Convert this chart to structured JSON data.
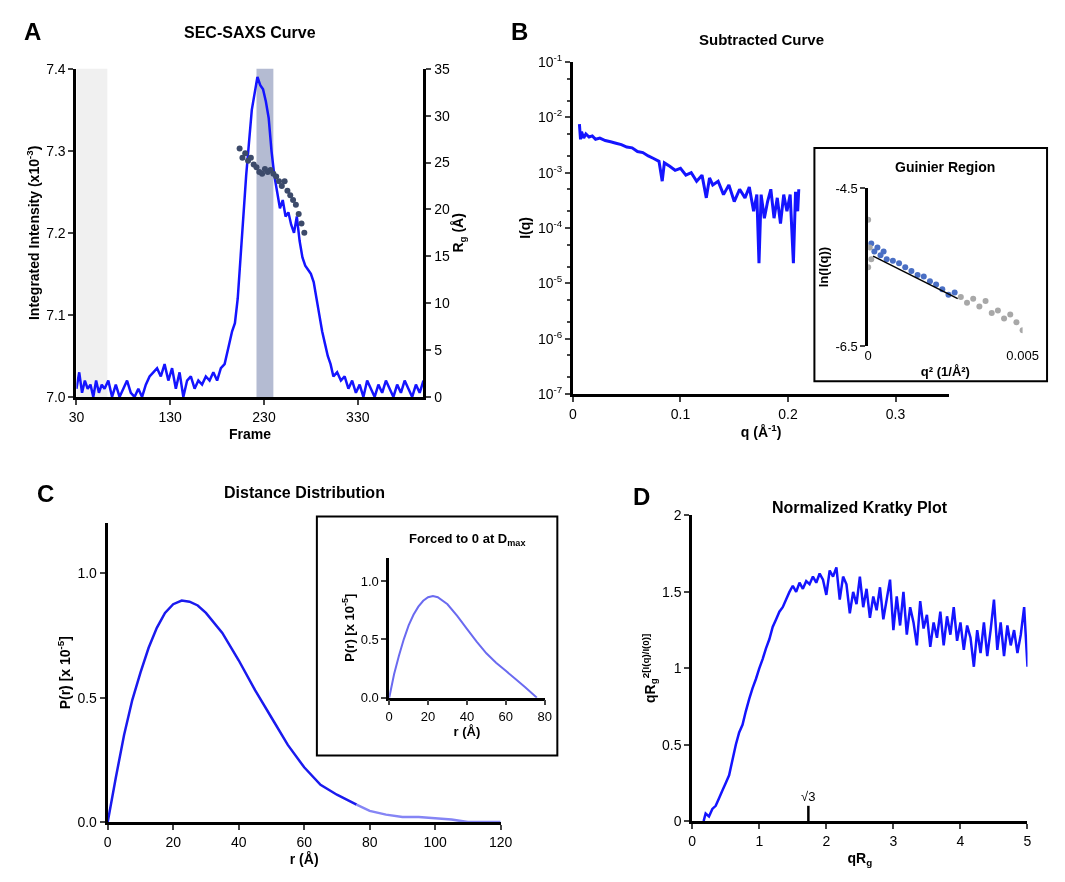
{
  "chart_data": [
    {
      "type": "line",
      "title": "SEC-SAXS Curve",
      "xlabel": "Frame",
      "ylabel": "Integrated Intensity (x10$^{-3}$)",
      "y2label": "R$_{g}$ (Å)",
      "annotations": [
        "A"
      ],
      "xlim": [
        30,
        400
      ],
      "xticks": [
        30,
        130,
        230,
        330
      ],
      "ylim": [
        7.0,
        7.4
      ],
      "yticks": [
        {
          "value": 7.0,
          "label": "7.0"
        },
        {
          "value": 7.1,
          "label": "7.1"
        },
        {
          "value": 7.2,
          "label": "7.2"
        },
        {
          "value": 7.3,
          "label": "7.3"
        },
        {
          "value": 7.4,
          "label": "7.4"
        }
      ],
      "y2lim": [
        0,
        35
      ],
      "y2ticks": [
        0,
        5,
        10,
        15,
        20,
        25,
        30,
        35
      ],
      "grid": false,
      "bands": [
        {
          "axis": "x",
          "from": 30,
          "to": 63,
          "color": "#f0f0f0"
        },
        {
          "axis": "x",
          "from": 222,
          "to": 240,
          "color": "#b4bbd2"
        }
      ],
      "series": [
        {
          "color": "#1414ff",
          "x": [
            30,
            33,
            36,
            39,
            42,
            45,
            48,
            51,
            54,
            57,
            60,
            64,
            68,
            72,
            76,
            80,
            84,
            88,
            92,
            96,
            100,
            104,
            108,
            112,
            116,
            120,
            124,
            128,
            132,
            136,
            140,
            144,
            148,
            152,
            156,
            160,
            164,
            168,
            172,
            176,
            180,
            184,
            188,
            192,
            196,
            199,
            202,
            205,
            208,
            211,
            214,
            217,
            220,
            223,
            226,
            229,
            232,
            235,
            238,
            241,
            244,
            247,
            250,
            253,
            256,
            259,
            262,
            265,
            268,
            271,
            274,
            277,
            280,
            283,
            286,
            289,
            292,
            295,
            298,
            301,
            304,
            308,
            312,
            316,
            320,
            324,
            328,
            332,
            336,
            340,
            344,
            348,
            352,
            356,
            360,
            364,
            368,
            372,
            376,
            380,
            384,
            388,
            392,
            396,
            400
          ],
          "values": [
            7.01,
            7.03,
            7.005,
            7.02,
            7.01,
            7.015,
            7.0,
            7.02,
            7.005,
            7.015,
            7.01,
            7.02,
            7.0,
            7.015,
            7.0,
            7.01,
            7.02,
            7.005,
            7.0,
            7.01,
            7.0,
            7.015,
            7.025,
            7.03,
            7.035,
            7.025,
            7.04,
            7.02,
            7.035,
            7.01,
            7.03,
            7.0,
            7.02,
            7.025,
            7.01,
            7.02,
            7.015,
            7.025,
            7.02,
            7.03,
            7.02,
            7.035,
            7.04,
            7.06,
            7.08,
            7.09,
            7.12,
            7.17,
            7.22,
            7.27,
            7.31,
            7.35,
            7.37,
            7.39,
            7.38,
            7.375,
            7.36,
            7.34,
            7.3,
            7.27,
            7.25,
            7.23,
            7.24,
            7.22,
            7.225,
            7.21,
            7.2,
            7.22,
            7.19,
            7.17,
            7.16,
            7.155,
            7.15,
            7.14,
            7.12,
            7.1,
            7.08,
            7.065,
            7.05,
            7.04,
            7.025,
            7.03,
            7.02,
            7.025,
            7.01,
            7.02,
            7.005,
            7.015,
            7.0,
            7.02,
            7.01,
            7.0,
            7.015,
            7.005,
            7.02,
            7.01,
            7.0,
            7.015,
            7.005,
            7.02,
            7.01,
            7.0,
            7.015,
            7.005,
            7.02
          ]
        },
        {
          "type": "scatter",
          "axis": "y2",
          "marker": "circle",
          "color": "#3c4a6a",
          "x": [
            204,
            207,
            210,
            213,
            216,
            219,
            222,
            225,
            228,
            231,
            234,
            237,
            240,
            243,
            246,
            249,
            252,
            255,
            258,
            261,
            264,
            267,
            270,
            273
          ],
          "values": [
            26.5,
            25.5,
            26,
            25.2,
            25.5,
            24.8,
            24.5,
            24,
            23.8,
            24.3,
            24,
            24.2,
            23.8,
            23.5,
            23,
            22.5,
            23,
            22,
            21.5,
            21,
            20.5,
            19.5,
            18.5,
            17.5
          ]
        }
      ]
    },
    {
      "type": "line",
      "title": "Subtracted Curve",
      "xlabel": "q (Å$^{-1}$)",
      "ylabel": "I(q)",
      "annotations": [
        "B"
      ],
      "log": true,
      "xlim": [
        0,
        0.35
      ],
      "xticks": [
        0,
        0.1,
        0.2,
        0.3
      ],
      "ylim": [
        1e-07,
        0.1
      ],
      "yticks": [
        {
          "value": 1e-07,
          "label": "10$^{-7}$"
        },
        {
          "value": 1e-06,
          "label": "10$^{-6}$"
        },
        {
          "value": 1e-05,
          "label": "10$^{-5}$"
        },
        {
          "value": 0.0001,
          "label": "10$^{-4}$"
        },
        {
          "value": 0.001,
          "label": "10$^{-3}$"
        },
        {
          "value": 0.01,
          "label": "10$^{-2}$"
        },
        {
          "value": 0.1,
          "label": "10$^{-1}$"
        }
      ],
      "grid": false,
      "series": [
        {
          "color": "#1414ff",
          "x": [
            0.006,
            0.007,
            0.008,
            0.01,
            0.012,
            0.015,
            0.018,
            0.021,
            0.025,
            0.03,
            0.035,
            0.04,
            0.045,
            0.05,
            0.055,
            0.06,
            0.065,
            0.07,
            0.075,
            0.08,
            0.083,
            0.085,
            0.09,
            0.095,
            0.1,
            0.105,
            0.11,
            0.115,
            0.12,
            0.124,
            0.127,
            0.13,
            0.135,
            0.14,
            0.145,
            0.15,
            0.155,
            0.16,
            0.164,
            0.168,
            0.171,
            0.173,
            0.175,
            0.178,
            0.181,
            0.184,
            0.187,
            0.19,
            0.193,
            0.196,
            0.199,
            0.202,
            0.205,
            0.207,
            0.209,
            0.21
          ],
          "values": [
            0.0075,
            0.004,
            0.0055,
            0.0042,
            0.005,
            0.0044,
            0.0046,
            0.004,
            0.0042,
            0.0038,
            0.0036,
            0.0034,
            0.0032,
            0.0029,
            0.0028,
            0.0024,
            0.0023,
            0.002,
            0.0018,
            0.0016,
            0.0007,
            0.0015,
            0.0013,
            0.0011,
            0.0012,
            0.0009,
            0.001,
            0.0007,
            0.0009,
            0.00035,
            0.0008,
            0.0006,
            0.0007,
            0.0004,
            0.0006,
            0.0003,
            0.0005,
            0.00035,
            0.00055,
            0.0002,
            0.0004,
            2.3e-05,
            0.0004,
            0.00015,
            0.0003,
            0.0005,
            0.00015,
            0.00035,
            0.00012,
            0.0004,
            0.0002,
            0.0004,
            2.3e-05,
            0.00045,
            0.0002,
            0.0005
          ]
        }
      ]
    },
    {
      "type": "scatter",
      "title": "Guinier Region",
      "xlabel": "q² (1/Å²)",
      "ylabel": "ln(I(q))",
      "xlim": [
        0,
        0.005
      ],
      "xticks": [
        0,
        0.005
      ],
      "ylim": [
        -6.5,
        -4.5
      ],
      "yticks": [
        -6.5,
        -4.5
      ],
      "grid": false,
      "series": [
        {
          "marker": "circle",
          "color": "#4a6fc4",
          "x": [
            0.0001,
            0.0002,
            0.0003,
            0.0004,
            0.0005,
            0.0006,
            0.0008,
            0.001,
            0.0012,
            0.0014,
            0.0016,
            0.0018,
            0.002,
            0.0022,
            0.0024,
            0.0026,
            0.0028
          ],
          "values": [
            -5.2,
            -5.3,
            -5.25,
            -5.35,
            -5.3,
            -5.4,
            -5.42,
            -5.45,
            -5.5,
            -5.55,
            -5.6,
            -5.62,
            -5.68,
            -5.72,
            -5.78,
            -5.85,
            -5.82
          ]
        },
        {
          "marker": "circle",
          "color": "#a8a8a8",
          "x": [
            0,
            0,
            5e-05,
            0.0001,
            0.003,
            0.0032,
            0.0034,
            0.0036,
            0.0038,
            0.004,
            0.0042,
            0.0044,
            0.0046,
            0.0048,
            0.005
          ],
          "values": [
            -4.9,
            -5.5,
            -5.25,
            -5.4,
            -5.88,
            -5.95,
            -5.9,
            -6.0,
            -5.93,
            -6.08,
            -6.05,
            -6.15,
            -6.1,
            -6.2,
            -6.3
          ]
        },
        {
          "type": "line",
          "color": "#000000",
          "x": [
            0.00016,
            0.0029
          ],
          "values": [
            -5.36,
            -5.9
          ]
        }
      ]
    },
    {
      "type": "line",
      "title": "Distance Distribution",
      "xlabel": "r (Å)",
      "ylabel": "P(r) [x 10$^{-5}$]",
      "annotations": [
        "C"
      ],
      "xlim": [
        0,
        120
      ],
      "xticks": [
        0,
        20,
        40,
        60,
        80,
        100,
        120
      ],
      "ylim": [
        0,
        1.2
      ],
      "yticks": [
        {
          "value": 0,
          "label": "0.0"
        },
        {
          "value": 0.5,
          "label": "0.5"
        },
        {
          "value": 1.0,
          "label": "1.0"
        }
      ],
      "grid": false,
      "series": [
        {
          "color": "#1a1aee",
          "x": [
            0,
            2.5,
            5,
            7.5,
            10,
            12.5,
            15,
            17.5,
            20,
            22.6,
            25,
            27.5,
            30,
            35,
            40,
            45,
            50,
            55,
            60,
            65,
            70,
            76
          ],
          "values": [
            0,
            0.18,
            0.35,
            0.49,
            0.6,
            0.7,
            0.78,
            0.84,
            0.875,
            0.89,
            0.885,
            0.87,
            0.84,
            0.76,
            0.65,
            0.53,
            0.42,
            0.31,
            0.22,
            0.15,
            0.11,
            0.07
          ]
        },
        {
          "color": "#8585f5",
          "x": [
            76,
            80,
            85,
            90,
            95,
            100,
            105,
            110,
            115,
            120
          ],
          "values": [
            0.07,
            0.045,
            0.03,
            0.02,
            0.02,
            0.015,
            0.01,
            0,
            0,
            0
          ]
        }
      ]
    },
    {
      "type": "line",
      "title": "Forced to 0 at D$_{max}$",
      "xlabel": "r (Å)",
      "ylabel": "P(r) [x 10$^{-5}$]",
      "xlim": [
        0,
        80
      ],
      "xticks": [
        0,
        20,
        40,
        60,
        80
      ],
      "ylim": [
        0,
        1.2
      ],
      "yticks": [
        {
          "value": 0,
          "label": "0.0"
        },
        {
          "value": 0.5,
          "label": "0.5"
        },
        {
          "value": 1.0,
          "label": "1.0"
        }
      ],
      "grid": false,
      "series": [
        {
          "color": "#6a6af0",
          "x": [
            0,
            2.5,
            5,
            7.5,
            10,
            12.5,
            15,
            17.5,
            20,
            22.5,
            25,
            30,
            35,
            40,
            45,
            50,
            55,
            60,
            65,
            70,
            76
          ],
          "values": [
            0,
            0.2,
            0.36,
            0.5,
            0.62,
            0.71,
            0.78,
            0.83,
            0.86,
            0.87,
            0.86,
            0.8,
            0.7,
            0.59,
            0.48,
            0.38,
            0.3,
            0.23,
            0.16,
            0.09,
            0
          ]
        }
      ]
    },
    {
      "type": "line",
      "title": "Normalized Kratky Plot",
      "xlabel": "qR$_{g}$",
      "ylabel": "qR$_{g}$$^{2[I(q)/I(0)]}$",
      "annotations": [
        "D"
      ],
      "xlim": [
        0,
        5
      ],
      "xticks": [
        0,
        1,
        2,
        3,
        4,
        5
      ],
      "ylim": [
        0,
        2
      ],
      "yticks": [
        0,
        0.5,
        1,
        1.5,
        2
      ],
      "grid": false,
      "ref_lines": [
        {
          "axis": "x",
          "value": 1.732,
          "label": "√3",
          "color": "#000000"
        }
      ],
      "series": [
        {
          "color": "#1414ff",
          "x": [
            0.17,
            0.2,
            0.25,
            0.3,
            0.35,
            0.4,
            0.45,
            0.5,
            0.55,
            0.6,
            0.65,
            0.7,
            0.75,
            0.8,
            0.85,
            0.9,
            0.95,
            1.0,
            1.05,
            1.1,
            1.15,
            1.2,
            1.25,
            1.3,
            1.35,
            1.4,
            1.45,
            1.5,
            1.55,
            1.6,
            1.65,
            1.7,
            1.75,
            1.8,
            1.85,
            1.9,
            1.95,
            2.0,
            2.05,
            2.1,
            2.15,
            2.2,
            2.25,
            2.3,
            2.35,
            2.4,
            2.45,
            2.5,
            2.55,
            2.6,
            2.65,
            2.7,
            2.75,
            2.8,
            2.85,
            2.9,
            2.95,
            3.0,
            3.05,
            3.1,
            3.15,
            3.2,
            3.25,
            3.3,
            3.35,
            3.4,
            3.45,
            3.5,
            3.55,
            3.6,
            3.65,
            3.7,
            3.75,
            3.8,
            3.85,
            3.9,
            3.95,
            4.0,
            4.05,
            4.1,
            4.15,
            4.2,
            4.25,
            4.3,
            4.35,
            4.4,
            4.45,
            4.5,
            4.55,
            4.6,
            4.65,
            4.7,
            4.75,
            4.8,
            4.85,
            4.9,
            4.95,
            5.0
          ],
          "values": [
            0.0,
            0.05,
            0.03,
            0.08,
            0.1,
            0.15,
            0.2,
            0.25,
            0.3,
            0.4,
            0.5,
            0.58,
            0.63,
            0.72,
            0.8,
            0.87,
            0.93,
            1.0,
            1.06,
            1.13,
            1.19,
            1.27,
            1.32,
            1.37,
            1.4,
            1.45,
            1.5,
            1.54,
            1.5,
            1.56,
            1.52,
            1.57,
            1.55,
            1.6,
            1.56,
            1.62,
            1.58,
            1.48,
            1.64,
            1.6,
            1.66,
            1.45,
            1.6,
            1.55,
            1.36,
            1.5,
            1.42,
            1.6,
            1.4,
            1.52,
            1.33,
            1.47,
            1.38,
            1.53,
            1.32,
            1.45,
            1.58,
            1.25,
            1.47,
            1.28,
            1.5,
            1.22,
            1.4,
            1.3,
            1.15,
            1.44,
            1.26,
            1.35,
            1.14,
            1.3,
            1.2,
            1.37,
            1.15,
            1.34,
            1.22,
            1.4,
            1.18,
            1.3,
            1.12,
            1.28,
            1.2,
            1.01,
            1.25,
            1.1,
            1.3,
            1.08,
            1.25,
            1.45,
            1.12,
            1.3,
            1.08,
            1.28,
            1.15,
            1.25,
            1.1,
            1.22,
            1.4,
            1.01
          ]
        }
      ]
    }
  ]
}
